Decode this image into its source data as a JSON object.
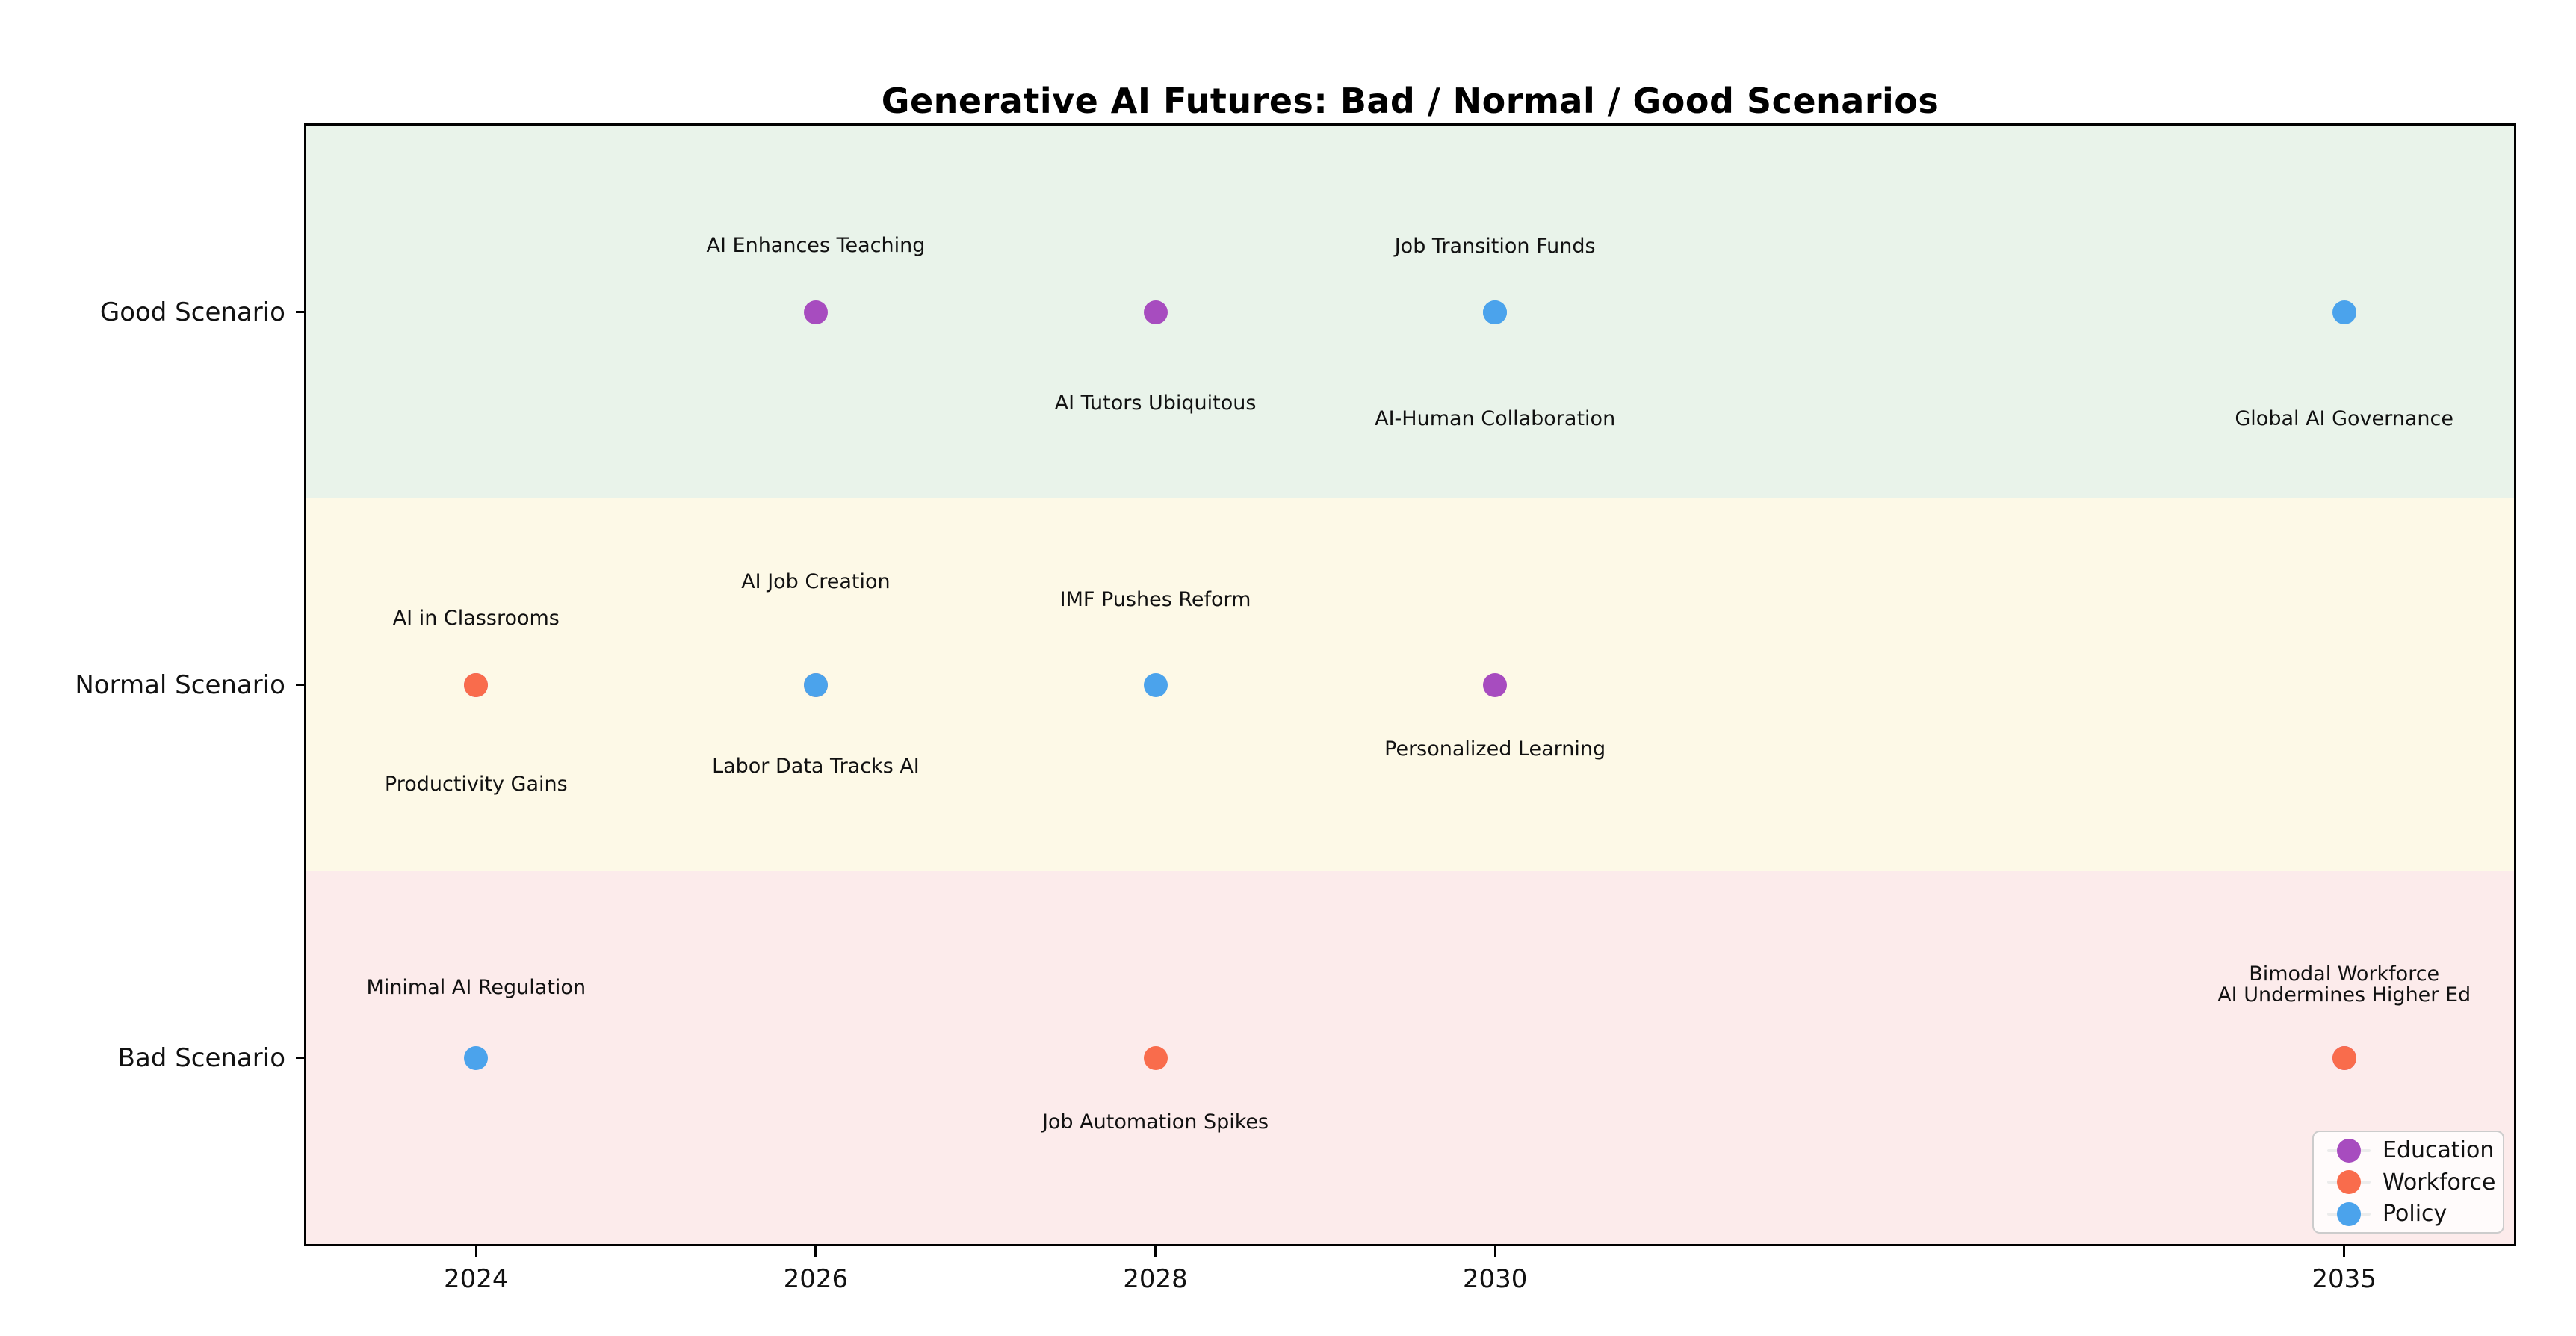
{
  "chart_data": {
    "type": "scatter",
    "title": "Generative AI Futures: Bad / Normal / Good Scenarios",
    "xlim": [
      2023,
      2036
    ],
    "x_ticks": [
      "2024",
      "2026",
      "2028",
      "2030",
      "2035"
    ],
    "x_tick_years": [
      2024,
      2026,
      2028,
      2030,
      2035
    ],
    "grid": false,
    "legend_position": "lower right",
    "scenarios": [
      {
        "id": "good",
        "label": "Good Scenario",
        "band_color": "#E9F3EA"
      },
      {
        "id": "normal",
        "label": "Normal Scenario",
        "band_color": "#FDF9E7"
      },
      {
        "id": "bad",
        "label": "Bad Scenario",
        "band_color": "#FCEBEB"
      }
    ],
    "categories": [
      {
        "name": "Education",
        "color": "#A74CBF"
      },
      {
        "name": "Workforce",
        "color": "#F96C4C"
      },
      {
        "name": "Policy",
        "color": "#4BA3EC"
      }
    ],
    "events": [
      {
        "year": 2024,
        "scenario": "Normal Scenario",
        "category": "Education",
        "label": "AI in Classrooms",
        "label_side": "above",
        "label_dy": -89
      },
      {
        "year": 2024,
        "scenario": "Normal Scenario",
        "category": "Workforce",
        "label": "Productivity Gains",
        "label_side": "below",
        "label_dy": 133
      },
      {
        "year": 2024,
        "scenario": "Bad Scenario",
        "category": "Policy",
        "label": "Minimal AI Regulation",
        "label_side": "above",
        "label_dy": -94
      },
      {
        "year": 2026,
        "scenario": "Good Scenario",
        "category": "Education",
        "label": "AI Enhances Teaching",
        "label_side": "above",
        "label_dy": -89
      },
      {
        "year": 2026,
        "scenario": "Normal Scenario",
        "category": "Workforce",
        "label": "AI Job Creation",
        "label_side": "above",
        "label_dy": -138
      },
      {
        "year": 2026,
        "scenario": "Normal Scenario",
        "category": "Policy",
        "label": "Labor Data Tracks AI",
        "label_side": "below",
        "label_dy": 109
      },
      {
        "year": 2028,
        "scenario": "Good Scenario",
        "category": "Education",
        "label": "AI Tutors Ubiquitous",
        "label_side": "below",
        "label_dy": 122
      },
      {
        "year": 2028,
        "scenario": "Normal Scenario",
        "category": "Policy",
        "label": "IMF Pushes Reform",
        "label_side": "above",
        "label_dy": -114
      },
      {
        "year": 2028,
        "scenario": "Bad Scenario",
        "category": "Workforce",
        "label": "Job Automation Spikes",
        "label_side": "below",
        "label_dy": 86
      },
      {
        "year": 2030,
        "scenario": "Good Scenario",
        "category": "Policy",
        "label": "Job Transition Funds",
        "label_side": "above",
        "label_dy": -88
      },
      {
        "year": 2030,
        "scenario": "Good Scenario",
        "category": "Policy",
        "label": "AI-Human Collaboration",
        "label_side": "below",
        "label_dy": 143
      },
      {
        "year": 2030,
        "scenario": "Normal Scenario",
        "category": "Education",
        "label": "Personalized Learning",
        "label_side": "below",
        "label_dy": 86
      },
      {
        "year": 2035,
        "scenario": "Good Scenario",
        "category": "Policy",
        "label": "Global AI Governance",
        "label_side": "below",
        "label_dy": 143
      },
      {
        "year": 2035,
        "scenario": "Bad Scenario",
        "category": "Education",
        "label": "AI Undermines Higher Ed",
        "label_side": "above",
        "label_dy": -84
      },
      {
        "year": 2035,
        "scenario": "Bad Scenario",
        "category": "Workforce",
        "label": "Bimodal Workforce",
        "label_side": "above",
        "label_dy": -112
      }
    ]
  }
}
